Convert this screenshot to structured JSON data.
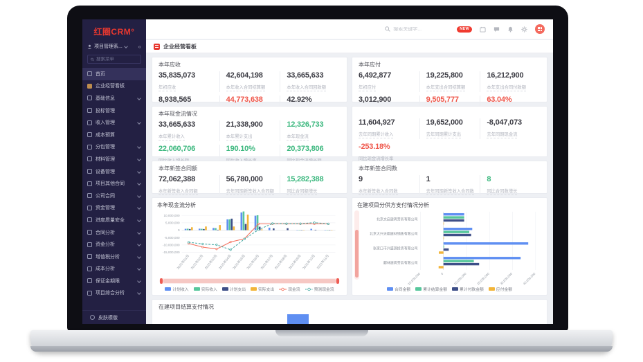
{
  "sidebar": {
    "logo": "红圈CRM°",
    "workspace": "项目管理系...",
    "collapse_icon": "«",
    "search_placeholder": "搜索菜单",
    "items": [
      {
        "label": "首页",
        "icon": "home-icon",
        "active": true,
        "arrow": false
      },
      {
        "label": "企业经营看板",
        "icon": "dashboard-icon",
        "active": false,
        "arrow": false
      },
      {
        "label": "基础信息",
        "icon": "folder-icon",
        "active": false,
        "arrow": true
      },
      {
        "label": "投标管理",
        "icon": "doc-icon",
        "active": false,
        "arrow": false
      },
      {
        "label": "收入管理",
        "icon": "folder-icon",
        "active": false,
        "arrow": true
      },
      {
        "label": "成本预算",
        "icon": "calc-icon",
        "active": false,
        "arrow": false
      },
      {
        "label": "分包管理",
        "icon": "folder-icon",
        "active": false,
        "arrow": true
      },
      {
        "label": "材料管理",
        "icon": "folder-icon",
        "active": false,
        "arrow": true
      },
      {
        "label": "设备管理",
        "icon": "folder-icon",
        "active": false,
        "arrow": true
      },
      {
        "label": "项目其他合同",
        "icon": "folder-icon",
        "active": false,
        "arrow": true
      },
      {
        "label": "公司合同",
        "icon": "folder-icon",
        "active": false,
        "arrow": true
      },
      {
        "label": "资金管理",
        "icon": "folder-icon",
        "active": false,
        "arrow": true
      },
      {
        "label": "进度质量安全",
        "icon": "folder-icon",
        "active": false,
        "arrow": true
      },
      {
        "label": "合同分析",
        "icon": "folder-icon",
        "active": false,
        "arrow": true
      },
      {
        "label": "资金分析",
        "icon": "folder-icon",
        "active": false,
        "arrow": true
      },
      {
        "label": "增值税分析",
        "icon": "folder-icon",
        "active": false,
        "arrow": true
      },
      {
        "label": "成本分析",
        "icon": "folder-icon",
        "active": false,
        "arrow": true
      },
      {
        "label": "保证金期限",
        "icon": "folder-icon",
        "active": false,
        "arrow": true
      },
      {
        "label": "项目综合分析",
        "icon": "folder-icon",
        "active": false,
        "arrow": true
      }
    ],
    "footer_item": "皮肤模版"
  },
  "topbar": {
    "search_placeholder": "搜索关键字...",
    "new_badge": "NEW",
    "icons": [
      "calendar-icon",
      "message-icon",
      "bell-icon",
      "gear-icon"
    ]
  },
  "page": {
    "title": "企业经营看板"
  },
  "stat_cards": [
    {
      "title": "本年应收",
      "stats": [
        {
          "value": "35,835,073",
          "label": "年初应收",
          "color": "dark"
        },
        {
          "value": "42,604,198",
          "label": "本年收入合同结算额",
          "color": "dark"
        },
        {
          "value": "33,665,633",
          "label": "本年收入合同回款额",
          "color": "dark"
        },
        {
          "value": "8,938,565",
          "label": "本年应收",
          "color": "dark"
        },
        {
          "value": "44,773,638",
          "label": "累计应收",
          "color": "red"
        },
        {
          "value": "42.92%",
          "label": "对上产值回款率",
          "color": "dark"
        }
      ]
    },
    {
      "title": "本年应付",
      "stats": [
        {
          "value": "6,492,877",
          "label": "年初应付",
          "color": "dark"
        },
        {
          "value": "19,225,800",
          "label": "本年支出合同结算额",
          "color": "dark"
        },
        {
          "value": "16,212,900",
          "label": "本年支出合同付款额",
          "color": "dark"
        },
        {
          "value": "3,012,900",
          "label": "本年应付",
          "color": "dark"
        },
        {
          "value": "9,505,777",
          "label": "累计应付",
          "color": "red"
        },
        {
          "value": "63.04%",
          "label": "对下结算付款率",
          "color": "red"
        }
      ]
    },
    {
      "title": "本年现金流情况",
      "stats": [
        {
          "value": "33,665,633",
          "label": "本年累计收入",
          "color": "dark"
        },
        {
          "value": "21,338,900",
          "label": "本年累计支出",
          "color": "dark"
        },
        {
          "value": "12,326,733",
          "label": "本年现金流",
          "color": "green"
        },
        {
          "value": "22,060,706",
          "label": "同比收入增长额",
          "color": "green"
        },
        {
          "value": "190.10%",
          "label": "同比收入增长率",
          "color": "green"
        },
        {
          "value": "20,373,806",
          "label": "同比现金流增长额",
          "color": "green"
        }
      ]
    },
    {
      "title": "",
      "stats": [
        {
          "value": "11,604,927",
          "label": "去年同期累计收入",
          "color": "dark"
        },
        {
          "value": "19,652,000",
          "label": "去年同期累计支出",
          "color": "dark"
        },
        {
          "value": "-8,047,073",
          "label": "去年同期现金流",
          "color": "dark"
        },
        {
          "value": "-253.18%",
          "label": "同比现金流增长率",
          "color": "red"
        }
      ]
    },
    {
      "title": "本年新签合同额",
      "stats": [
        {
          "value": "72,062,388",
          "label": "本年新签收入合同额",
          "color": "dark"
        },
        {
          "value": "56,780,000",
          "label": "去年同期新签收入合同额",
          "color": "dark"
        },
        {
          "value": "15,282,388",
          "label": "同比合同额增长",
          "color": "green"
        }
      ]
    },
    {
      "title": "本年新签合同数",
      "stats": [
        {
          "value": "9",
          "label": "本年新签收入合同数",
          "color": "dark"
        },
        {
          "value": "1",
          "label": "去年同期新签收入合同数",
          "color": "dark"
        },
        {
          "value": "8",
          "label": "同比合同数增长",
          "color": "green"
        }
      ]
    }
  ],
  "chart_data": [
    {
      "type": "bar+line",
      "title": "本年现金流分析",
      "categories": [
        "2021年01月",
        "2021年02月",
        "2021年03月",
        "2021年04月",
        "2021年05月",
        "2021年06月",
        "2021年07月",
        "2021年08月",
        "2021年09月",
        "2021年10月",
        "2021年11月"
      ],
      "series": [
        {
          "name": "计划收入",
          "type": "bar",
          "color": "#5f8ff2",
          "values": [
            900000,
            1000000,
            1500000,
            7300000,
            12000000,
            9800000,
            1700000,
            0,
            200000,
            900000,
            200000
          ]
        },
        {
          "name": "实际收入",
          "type": "bar",
          "color": "#57c79c",
          "values": [
            1000000,
            900000,
            1400000,
            7300000,
            12700000,
            10100000,
            0,
            0,
            200000,
            0,
            200000
          ]
        },
        {
          "name": "计划支出",
          "type": "bar",
          "color": "#3e4f88",
          "values": [
            800000,
            800000,
            300000,
            7800000,
            4200000,
            2300000,
            1200000,
            1300000,
            200000,
            300000,
            200000
          ]
        },
        {
          "name": "实际支出",
          "type": "bar",
          "color": "#f2b53a",
          "values": [
            2000000,
            2500000,
            3500000,
            2500000,
            10500000,
            500000,
            0,
            0,
            200000,
            0,
            200000
          ]
        },
        {
          "name": "现金流",
          "type": "line",
          "dashed": false,
          "color": "#f4705c",
          "values": [
            -9000000,
            -11500000,
            -12800000,
            -8000000,
            -5800000,
            4300000,
            4300000,
            4300000,
            4300000,
            4300000,
            4300000
          ]
        },
        {
          "name": "预测现金流",
          "type": "line",
          "dashed": true,
          "color": "#46aaa4",
          "values": [
            -8200000,
            -9300000,
            -9900000,
            -13300000,
            -6000000,
            300000,
            4500000,
            4400000,
            4400000,
            5100000,
            4300000
          ]
        }
      ],
      "ylim": [
        -15000000,
        12500000
      ],
      "yticks": [
        10000000,
        5000000,
        0,
        -5000000,
        -10000000,
        -15000000
      ],
      "legend_position": "bottom",
      "grid": true
    },
    {
      "type": "bar-horizontal",
      "title": "在建项目分供方支付情况分析",
      "categories": [
        "北京文启建筑劳务有限公司",
        "北京大兴天翔建材销售有限公司",
        "张家口市兴盛源投资有限公司",
        "鄱林建筑劳务有限公司"
      ],
      "series": [
        {
          "name": "合同金额",
          "type": "bar",
          "color": "#5f8ff2",
          "values": [
            9000000,
            12500000,
            36800000,
            33500000
          ]
        },
        {
          "name": "累计结算金额",
          "type": "bar",
          "color": "#57c79c",
          "values": [
            9000000,
            11200000,
            300000,
            13200000
          ]
        },
        {
          "name": "累计付款金额",
          "type": "bar",
          "color": "#3e4f88",
          "values": [
            9000000,
            12000000,
            2300000,
            15500000
          ]
        },
        {
          "name": "应付金额",
          "type": "bar",
          "color": "#f2b53a",
          "values": [
            200000,
            200000,
            -2000000,
            -2100000
          ]
        }
      ],
      "xlim": [
        -10000000,
        40000000
      ],
      "xticks": [
        -10000000,
        0,
        10000000,
        20000000,
        30000000,
        40000000
      ],
      "legend_position": "bottom",
      "grid": true
    },
    {
      "type": "bar",
      "title": "在建项目结算支付情况",
      "note": "partially visible, one blue bar shown",
      "bar_color": "#5f8ff2"
    }
  ]
}
